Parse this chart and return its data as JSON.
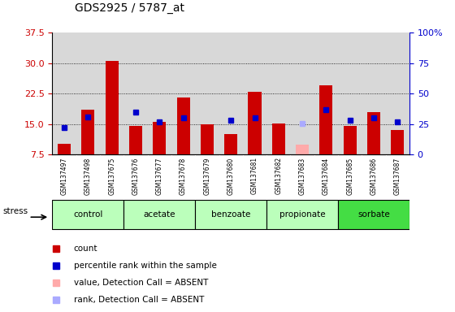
{
  "title": "GDS2925 / 5787_at",
  "samples": [
    "GSM137497",
    "GSM137498",
    "GSM137675",
    "GSM137676",
    "GSM137677",
    "GSM137678",
    "GSM137679",
    "GSM137680",
    "GSM137681",
    "GSM137682",
    "GSM137683",
    "GSM137684",
    "GSM137685",
    "GSM137686",
    "GSM137687"
  ],
  "count_values": [
    10.2,
    18.5,
    30.5,
    14.5,
    15.5,
    21.5,
    15.0,
    12.5,
    23.0,
    15.2,
    null,
    24.5,
    14.5,
    18.0,
    13.5
  ],
  "rank_values": [
    14.2,
    16.8,
    null,
    18.0,
    15.5,
    16.5,
    null,
    16.0,
    16.5,
    null,
    null,
    18.5,
    16.0,
    16.5,
    15.5
  ],
  "absent_count_val": [
    null,
    null,
    null,
    null,
    null,
    null,
    null,
    null,
    null,
    null,
    10.0,
    null,
    null,
    null,
    null
  ],
  "absent_rank_val": [
    null,
    null,
    null,
    null,
    null,
    null,
    null,
    null,
    null,
    null,
    15.2,
    null,
    null,
    null,
    null
  ],
  "ylim_left": [
    7.5,
    37.5
  ],
  "yticks_left": [
    7.5,
    15.0,
    22.5,
    30.0,
    37.5
  ],
  "ylim_right": [
    0,
    100
  ],
  "yticks_right": [
    0,
    25,
    50,
    75,
    100
  ],
  "ytick_right_labels": [
    "0",
    "25",
    "50",
    "75",
    "100%"
  ],
  "bar_color": "#cc0000",
  "rank_color": "#0000cc",
  "absent_bar_color": "#ffaaaa",
  "absent_rank_color": "#aaaaff",
  "plot_bg": "#ffffff",
  "col_bg": "#d8d8d8",
  "tick_label_area_color": "#cccccc",
  "group_configs": [
    {
      "name": "control",
      "start": 0,
      "end": 2,
      "color": "#bbffbb"
    },
    {
      "name": "acetate",
      "start": 3,
      "end": 5,
      "color": "#bbffbb"
    },
    {
      "name": "benzoate",
      "start": 6,
      "end": 8,
      "color": "#bbffbb"
    },
    {
      "name": "propionate",
      "start": 9,
      "end": 11,
      "color": "#bbffbb"
    },
    {
      "name": "sorbate",
      "start": 12,
      "end": 14,
      "color": "#44dd44"
    }
  ],
  "legend_items": [
    {
      "color": "#cc0000",
      "label": "count"
    },
    {
      "color": "#0000cc",
      "label": "percentile rank within the sample"
    },
    {
      "color": "#ffaaaa",
      "label": "value, Detection Call = ABSENT"
    },
    {
      "color": "#aaaaff",
      "label": "rank, Detection Call = ABSENT"
    }
  ],
  "stress_label": "stress"
}
